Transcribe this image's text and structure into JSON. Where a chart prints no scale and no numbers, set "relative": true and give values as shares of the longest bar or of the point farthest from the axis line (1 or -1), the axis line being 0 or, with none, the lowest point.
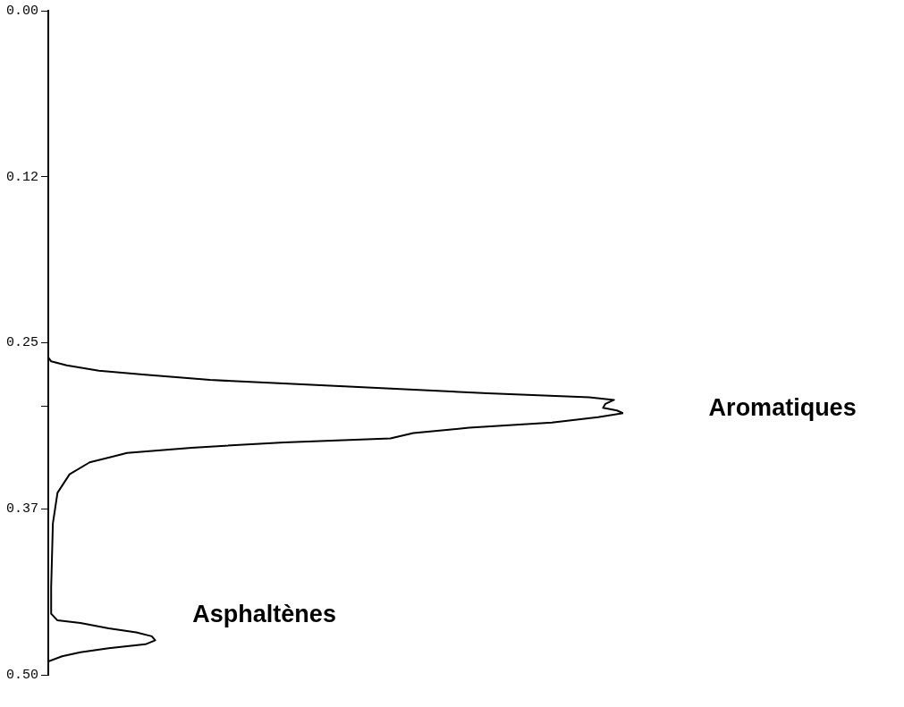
{
  "chart_data": {
    "type": "line",
    "orientation": "horizontal",
    "relative": true,
    "marker": "none",
    "grid": false,
    "legend": false,
    "tick_labels": "y",
    "ylim": [
      0.5,
      0
    ],
    "yticks": [
      {
        "value": 0,
        "label": "0.00"
      },
      {
        "value": 0.125,
        "label": "0.12"
      },
      0.25,
      {
        "value": 0.298,
        "label": null
      },
      {
        "value": 0.375,
        "label": "0.37"
      },
      {
        "value": 0.5,
        "label": "0.50"
      }
    ],
    "x": [
      0,
      0.06,
      0.128,
      0.196,
      0.261,
      0.264,
      0.267,
      0.271,
      0.274,
      0.278,
      0.283,
      0.288,
      0.291,
      0.293,
      0.296,
      0.299,
      0.301,
      0.303,
      0.306,
      0.31,
      0.314,
      0.318,
      0.322,
      0.325,
      0.329,
      0.333,
      0.34,
      0.349,
      0.363,
      0.386,
      0.434,
      0.454,
      0.459,
      0.461,
      0.465,
      0.468,
      0.471,
      0.474,
      0.477,
      0.48,
      0.483,
      0.486,
      0.49,
      0.5
    ],
    "series": [
      {
        "color": "#000000",
        "values": [
          0,
          0,
          0,
          0,
          0,
          0.005,
          0.032,
          0.088,
          0.169,
          0.281,
          0.523,
          0.764,
          0.941,
          0.984,
          0.969,
          0.965,
          0.989,
          1,
          0.956,
          0.876,
          0.732,
          0.635,
          0.595,
          0.41,
          0.249,
          0.137,
          0.072,
          0.037,
          0.016,
          0.008,
          0.005,
          0.005,
          0.016,
          0.056,
          0.105,
          0.153,
          0.18,
          0.186,
          0.169,
          0.105,
          0.056,
          0.024,
          0,
          0
        ]
      }
    ],
    "annotations": [
      "Aromatiques",
      "Asphaltènes"
    ]
  }
}
